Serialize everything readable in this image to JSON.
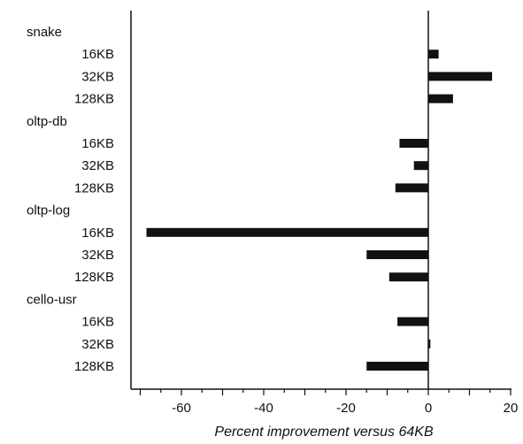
{
  "chart_data": {
    "type": "bar",
    "orientation": "horizontal",
    "xlabel": "Percent improvement versus 64KB",
    "ylabel": "",
    "title": "",
    "xlim": [
      -70,
      20
    ],
    "xticks": [
      -60,
      -40,
      -20,
      0,
      20
    ],
    "grid": false,
    "groups": [
      {
        "name": "snake",
        "categories": [
          "16KB",
          "32KB",
          "128KB"
        ],
        "values": [
          2.5,
          15.5,
          6.0
        ]
      },
      {
        "name": "oltp-db",
        "categories": [
          "16KB",
          "32KB",
          "128KB"
        ],
        "values": [
          -7.0,
          -3.5,
          -8.0
        ]
      },
      {
        "name": "oltp-log",
        "categories": [
          "16KB",
          "32KB",
          "128KB"
        ],
        "values": [
          -68.5,
          -15.0,
          -9.5
        ]
      },
      {
        "name": "cello-usr",
        "categories": [
          "16KB",
          "32KB",
          "128KB"
        ],
        "values": [
          -7.5,
          0.5,
          -15.0
        ]
      }
    ],
    "bar_color": "#111111"
  }
}
